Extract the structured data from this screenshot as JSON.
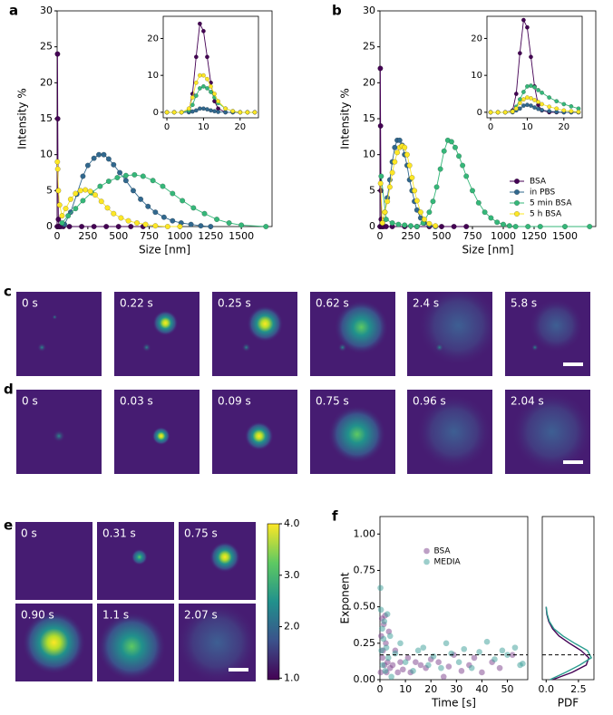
{
  "chart_data": [
    {
      "panel": "a",
      "type": "line",
      "xlabel": "Size [nm]",
      "ylabel": "Intensity %",
      "xlim": [
        0,
        1750
      ],
      "ylim": [
        0,
        30
      ],
      "xticks": [
        0,
        250,
        500,
        750,
        1000,
        1250,
        1500
      ],
      "yticks": [
        0,
        5,
        10,
        15,
        20,
        25,
        30
      ],
      "series": [
        {
          "color": "#440154",
          "x": [
            1,
            3,
            5,
            8,
            10,
            15,
            20,
            30,
            50,
            100,
            200,
            300,
            400,
            500,
            600,
            700
          ],
          "values": [
            0,
            24,
            15,
            5,
            1,
            0,
            0,
            0,
            0,
            0,
            0,
            0,
            0,
            0,
            0,
            0
          ]
        },
        {
          "color": "#31688e",
          "x": [
            60,
            110,
            160,
            210,
            250,
            300,
            340,
            380,
            420,
            460,
            510,
            560,
            620,
            680,
            740,
            800,
            870,
            940,
            1010,
            1090,
            1170,
            1250
          ],
          "values": [
            0.3,
            2,
            4.5,
            7,
            8.5,
            9.5,
            10,
            10,
            9.4,
            8.6,
            7.5,
            6.4,
            5,
            3.8,
            2.8,
            2,
            1.3,
            0.8,
            0.5,
            0.3,
            0.1,
            0
          ]
        },
        {
          "color": "#35b779",
          "x": [
            40,
            90,
            150,
            210,
            280,
            350,
            420,
            490,
            560,
            630,
            700,
            780,
            860,
            940,
            1020,
            1110,
            1200,
            1300,
            1400,
            1500,
            1700
          ],
          "values": [
            0.5,
            1.5,
            2.5,
            3.6,
            4.7,
            5.6,
            6.3,
            6.8,
            7.1,
            7.2,
            7,
            6.4,
            5.6,
            4.6,
            3.6,
            2.6,
            1.8,
            1,
            0.5,
            0.2,
            0
          ]
        },
        {
          "color": "#fde725",
          "x": [
            2,
            5,
            10,
            20,
            40,
            70,
            110,
            150,
            190,
            230,
            270,
            310,
            360,
            410,
            460,
            520,
            580,
            650,
            720,
            800,
            900,
            1000
          ],
          "values": [
            9,
            8,
            5,
            3,
            1.5,
            2.5,
            3.8,
            4.6,
            5,
            5.1,
            4.9,
            4.4,
            3.5,
            2.6,
            1.8,
            1.2,
            0.8,
            0.5,
            0.3,
            0.1,
            0,
            0
          ]
        }
      ],
      "inset": {
        "type": "line",
        "xlim": [
          -1,
          25
        ],
        "ylim": [
          -1.5,
          26
        ],
        "xticks": [
          0,
          10,
          20
        ],
        "yticks": [
          0,
          10,
          20
        ],
        "series": [
          {
            "x": [
              0,
              2,
              4,
              6,
              7,
              8,
              9,
              10,
              11,
              12,
              13,
              14,
              16,
              18,
              20,
              22,
              24
            ],
            "values": [
              0,
              0,
              0,
              0.5,
              5,
              15,
              24,
              22,
              15,
              8,
              3,
              1,
              0,
              0,
              0,
              0,
              0
            ]
          },
          {
            "x": [
              0,
              2,
              4,
              6,
              7,
              8,
              9,
              10,
              11,
              12,
              13,
              14,
              16,
              18,
              20,
              22,
              24
            ],
            "values": [
              0,
              0,
              0,
              0,
              0.2,
              0.5,
              1,
              1,
              0.8,
              0.5,
              0.3,
              0.1,
              0,
              0,
              0,
              0,
              0
            ]
          },
          {
            "x": [
              0,
              2,
              4,
              6,
              7,
              8,
              9,
              10,
              11,
              12,
              13,
              14,
              16,
              18,
              20,
              22,
              24
            ],
            "values": [
              0,
              0,
              0,
              0.5,
              2,
              4.5,
              6.5,
              7,
              6.5,
              5.5,
              4,
              2.5,
              1,
              0.3,
              0,
              0,
              0
            ]
          },
          {
            "x": [
              0,
              2,
              4,
              6,
              7,
              8,
              9,
              10,
              11,
              12,
              13,
              14,
              16,
              18,
              20,
              22,
              24
            ],
            "values": [
              0,
              0,
              0,
              1,
              4,
              8,
              10,
              10,
              9,
              7,
              5,
              3,
              1,
              0.3,
              0,
              0,
              0
            ]
          }
        ]
      }
    },
    {
      "panel": "b",
      "type": "line",
      "xlabel": "Size [nm]",
      "ylabel": "Intensity %",
      "xlim": [
        0,
        1750
      ],
      "ylim": [
        0,
        30
      ],
      "xticks": [
        0,
        250,
        500,
        750,
        1000,
        1250,
        1500
      ],
      "yticks": [
        0,
        5,
        10,
        15,
        20,
        25,
        30
      ],
      "legend": "lower right",
      "series": [
        {
          "name": "BSA",
          "color": "#440154",
          "x": [
            1,
            3,
            5,
            8,
            10,
            15,
            20,
            30,
            50,
            100,
            200,
            300,
            400,
            500,
            600,
            700
          ],
          "values": [
            0,
            22,
            14,
            5,
            1,
            0,
            0,
            0,
            0,
            0,
            0,
            0,
            0,
            0,
            0,
            0
          ]
        },
        {
          "name": "in PBS",
          "color": "#31688e",
          "x": [
            20,
            40,
            60,
            80,
            100,
            120,
            140,
            160,
            180,
            200,
            220,
            240,
            260,
            280,
            300,
            330,
            360,
            400,
            450
          ],
          "values": [
            0.5,
            2,
            4,
            6.5,
            9,
            11,
            12,
            12,
            11.3,
            10,
            8.5,
            6.5,
            5,
            3.5,
            2.3,
            1.2,
            0.5,
            0.2,
            0
          ]
        },
        {
          "name": "5 min BSA",
          "color": "#35b779",
          "x": [
            10,
            50,
            100,
            150,
            200,
            250,
            300,
            350,
            400,
            430,
            460,
            490,
            520,
            550,
            580,
            610,
            640,
            670,
            700,
            750,
            800,
            850,
            900,
            950,
            1000,
            1050,
            1100,
            1200,
            1300,
            1500,
            1700
          ],
          "values": [
            7,
            1,
            0.5,
            0.3,
            0.2,
            0.1,
            0,
            0.5,
            2,
            3.5,
            5.5,
            8,
            10.5,
            12,
            11.8,
            11,
            9.8,
            8.5,
            7,
            5,
            3.3,
            2,
            1.2,
            0.6,
            0.3,
            0.1,
            0,
            0,
            0,
            0,
            0
          ]
        },
        {
          "name": "5 h BSA",
          "color": "#fde725",
          "x": [
            5,
            20,
            40,
            60,
            80,
            100,
            120,
            140,
            160,
            180,
            200,
            220,
            240,
            260,
            280,
            300,
            330,
            360,
            400,
            450
          ],
          "values": [
            6,
            0.5,
            2,
            3.5,
            5.5,
            7.5,
            9,
            10.3,
            11,
            11.2,
            11,
            10,
            8.5,
            6.8,
            5,
            3.6,
            2,
            1,
            0.4,
            0.1
          ]
        }
      ],
      "inset": {
        "type": "line",
        "xlim": [
          -1,
          25
        ],
        "ylim": [
          -1.5,
          26
        ],
        "xticks": [
          0,
          10,
          20
        ],
        "yticks": [
          0,
          10,
          20
        ],
        "series": [
          {
            "x": [
              0,
              2,
              4,
              6,
              7,
              8,
              9,
              10,
              11,
              12,
              13,
              14,
              16,
              18,
              20,
              22,
              24
            ],
            "values": [
              0,
              0,
              0,
              0.5,
              5,
              16,
              25,
              23,
              15,
              7,
              2,
              0.5,
              0,
              0,
              0,
              0,
              0
            ]
          },
          {
            "x": [
              0,
              2,
              4,
              6,
              7,
              8,
              9,
              10,
              11,
              12,
              13,
              14,
              16,
              18,
              20,
              22,
              24
            ],
            "values": [
              0,
              0,
              0,
              0,
              0.5,
              1,
              1.8,
              2,
              1.8,
              1.3,
              0.9,
              0.6,
              0.3,
              0.1,
              0,
              0,
              0
            ]
          },
          {
            "x": [
              0,
              2,
              4,
              6,
              7,
              8,
              9,
              10,
              11,
              12,
              13,
              14,
              16,
              18,
              20,
              22,
              24
            ],
            "values": [
              0,
              0,
              0,
              0.3,
              1.5,
              3.5,
              5.5,
              7,
              7.2,
              6.8,
              6,
              5.3,
              4,
              3,
              2.2,
              1.6,
              1
            ]
          },
          {
            "x": [
              0,
              2,
              4,
              6,
              7,
              8,
              9,
              10,
              11,
              12,
              13,
              14,
              16,
              18,
              20,
              22,
              24
            ],
            "values": [
              0,
              0,
              0,
              0.2,
              1,
              2.5,
              3.5,
              4,
              3.8,
              3.3,
              2.8,
              2.2,
              1.5,
              1,
              0.5,
              0.3,
              0.1
            ]
          }
        ]
      }
    },
    {
      "panel": "f",
      "type": "scatter",
      "xlabel": "Time [s]",
      "ylabel": "Exponent",
      "xlim": [
        0,
        58
      ],
      "ylim": [
        0,
        1.12
      ],
      "xticks": [
        0,
        10,
        20,
        30,
        40,
        50
      ],
      "yticks": [
        {
          "value": 0,
          "label": "0.00"
        },
        {
          "value": 0.25,
          "label": "0.25"
        },
        {
          "value": 0.5,
          "label": "0.50"
        },
        {
          "value": 0.75,
          "label": "0.75"
        },
        {
          "value": 1,
          "label": "1.00"
        }
      ],
      "hline": 0.17,
      "legend": "upper center",
      "series": [
        {
          "name": "BSA",
          "color": "#7b3f8c",
          "x": [
            0.3,
            0.5,
            0.8,
            1,
            1.2,
            1.5,
            1.8,
            2,
            2.3,
            2.6,
            3,
            3.5,
            4,
            5,
            6,
            7,
            8,
            9,
            11,
            12,
            14,
            16,
            18,
            20,
            23,
            25,
            27,
            29,
            32,
            35,
            37,
            40,
            44,
            47,
            52
          ],
          "values": [
            0.05,
            0.3,
            0.42,
            0.15,
            0.2,
            0.38,
            0.1,
            0.44,
            0.25,
            0.05,
            0.12,
            0.33,
            0.08,
            0.1,
            0.2,
            0.05,
            0.12,
            0.07,
            0.15,
            0.05,
            0.12,
            0.1,
            0.08,
            0.14,
            0.12,
            0.02,
            0.09,
            0.17,
            0.06,
            0.1,
            0.15,
            0.05,
            0.12,
            0.08,
            0.17
          ]
        },
        {
          "name": "MEDIA",
          "color": "#3a9e98",
          "x": [
            0.2,
            0.4,
            0.6,
            0.9,
            1.1,
            1.4,
            1.7,
            2.1,
            2.5,
            2.9,
            3.3,
            4,
            4.5,
            6,
            8,
            10,
            13,
            15,
            17,
            19,
            21,
            24,
            26,
            28,
            31,
            33,
            36,
            39,
            42,
            45,
            48,
            50,
            53,
            56,
            55
          ],
          "values": [
            0.63,
            0.48,
            0.2,
            0.35,
            0.1,
            0.28,
            0.4,
            0.06,
            0.22,
            0.45,
            0.15,
            0.3,
            0.02,
            0.18,
            0.25,
            0.12,
            0.06,
            0.2,
            0.22,
            0.1,
            0.16,
            0.08,
            0.25,
            0.18,
            0.12,
            0.21,
            0.08,
            0.19,
            0.26,
            0.14,
            0.2,
            0.17,
            0.22,
            0.11,
            0.1
          ]
        }
      ]
    },
    {
      "type": "density",
      "orientation": "horizontal",
      "xlabel": "PDF",
      "xlim": [
        -0.3,
        3.7
      ],
      "ylim": [
        0,
        1.12
      ],
      "xticks": [
        {
          "value": 0,
          "label": "0.0"
        },
        {
          "value": 2.5,
          "label": "2.5"
        }
      ],
      "hline": 0.17,
      "y": [
        0,
        0.05,
        0.1,
        0.15,
        0.2,
        0.25,
        0.3,
        0.35,
        0.4,
        0.45,
        0.5
      ],
      "series": [
        {
          "color": "#440154",
          "values": [
            0.5,
            2,
            3.1,
            3.3,
            2.7,
            1.8,
            1,
            0.5,
            0.2,
            0.05,
            0
          ]
        },
        {
          "color": "#2a9d8f",
          "values": [
            0.3,
            1.5,
            2.6,
            3.5,
            3.2,
            2.2,
            1.3,
            0.6,
            0.25,
            0.08,
            0
          ]
        }
      ]
    }
  ],
  "image_panels": [
    {
      "label": "c",
      "frames": [
        "0 s",
        "0.22 s",
        "0.25 s",
        "0.62 s",
        "2.4 s",
        "5.8 s"
      ]
    },
    {
      "label": "d",
      "frames": [
        "0 s",
        "0.03 s",
        "0.09 s",
        "0.75 s",
        "0.96 s",
        "2.04 s"
      ]
    },
    {
      "label": "e",
      "frames": [
        "0 s",
        "0.31 s",
        "0.75 s",
        "0.90 s",
        "1.1 s",
        "2.07 s"
      ],
      "colorbar": {
        "ylim": [
          0.97,
          4.0
        ],
        "yticks": [
          {
            "value": 1,
            "label": "1.0"
          },
          {
            "value": 2,
            "label": "2.0"
          },
          {
            "value": 3,
            "label": "3.0"
          },
          {
            "value": 4,
            "label": "4.0"
          }
        ]
      }
    }
  ]
}
